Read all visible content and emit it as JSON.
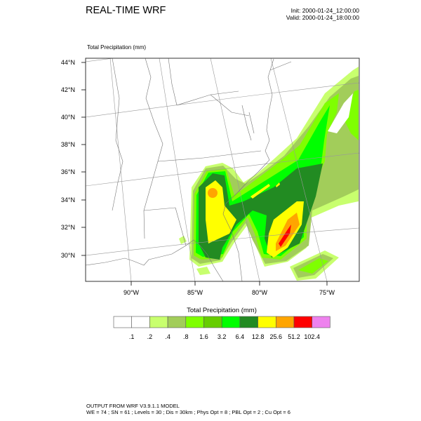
{
  "header": {
    "title": "REAL-TIME WRF",
    "init": "Init: 2000-01-24_12:00:00",
    "valid": "Valid: 2000-01-24_18:00:00"
  },
  "plot": {
    "field_label": "Total Precipitation   (mm)",
    "lat_labels": [
      "44°N",
      "42°N",
      "40°N",
      "38°N",
      "36°N",
      "34°N",
      "32°N",
      "30°N"
    ],
    "lon_labels": [
      "90°W",
      "85°W",
      "80°W",
      "75°W"
    ]
  },
  "colorbar": {
    "title": "Total Precipitation  (mm)",
    "levels": [
      ".1",
      ".2",
      ".4",
      ".8",
      "1.6",
      "3.2",
      "6.4",
      "12.8",
      "25.6",
      "51.2",
      "102.4"
    ],
    "colors": [
      "#ffffff",
      "#ffffff",
      "#c8ff6e",
      "#a2cd5a",
      "#7fff00",
      "#66cd00",
      "#00ff00",
      "#228b22",
      "#ffff00",
      "#ffa500",
      "#ff0000",
      "#ee82ee"
    ]
  },
  "footer": {
    "line1": "OUTPUT FROM WRF V3.9.1.1 MODEL",
    "line2": "WE = 74 ; SN = 61 ; Levels = 30 ; Dis = 30km ; Phys Opt = 8 ; PBL Opt = 2 ; Cu Opt = 6"
  }
}
